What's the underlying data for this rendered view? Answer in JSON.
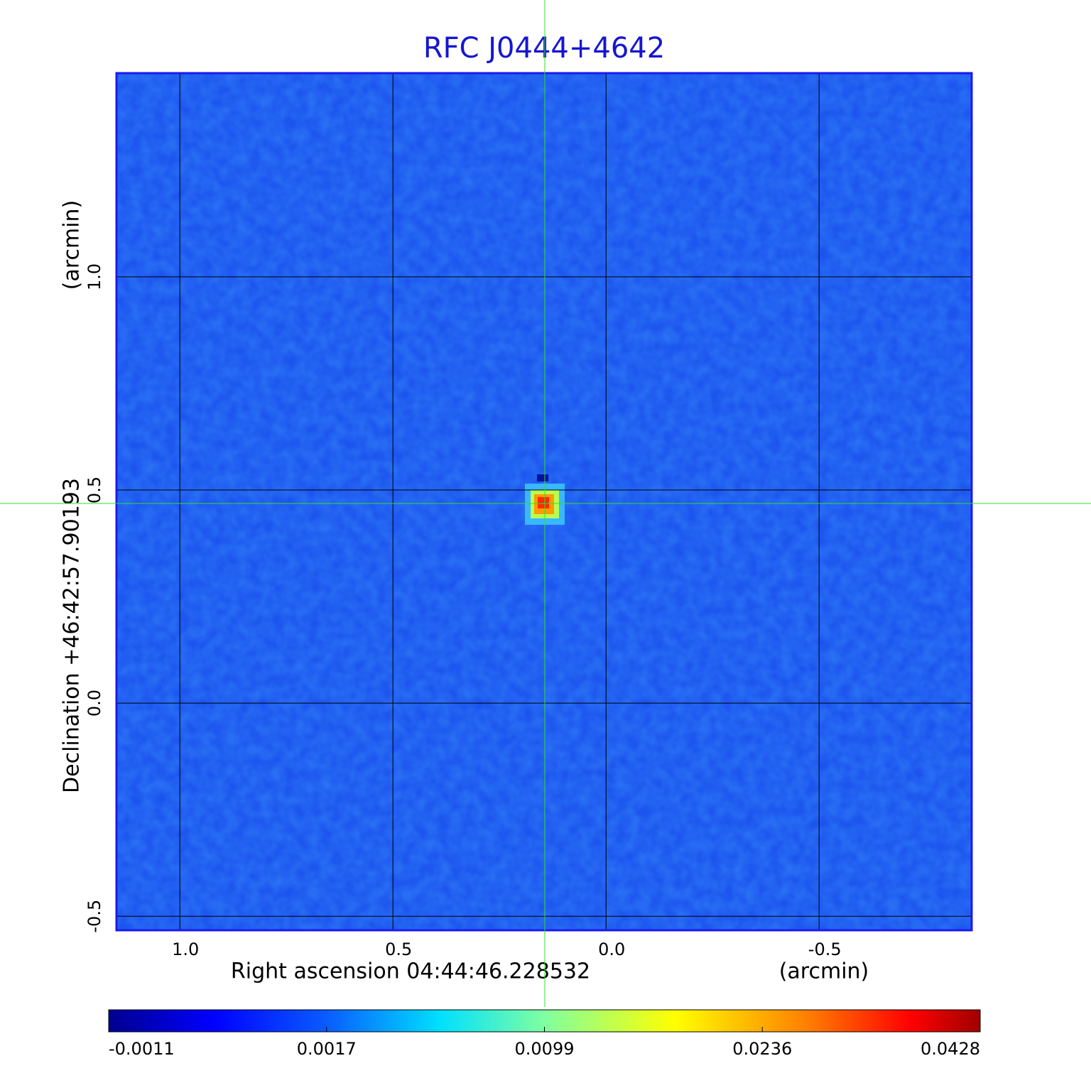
{
  "chart_data": {
    "type": "image",
    "title": "RFC J0444+4642",
    "x_label": "Right ascension  04:44:46.228532",
    "x_unit": "(arcmin)",
    "y_label": "Declination  +46:42:57.90193",
    "y_unit": "(arcmin)",
    "xlim": [
      1.147,
      -0.858
    ],
    "ylim": [
      -0.533,
      1.478
    ],
    "xticks": [
      {
        "value": 1,
        "label": "1.0"
      },
      0.5,
      {
        "value": 0,
        "label": "0.0"
      },
      -0.5
    ],
    "yticks": [
      -0.5,
      {
        "value": 0,
        "label": "0.0"
      },
      0.5,
      {
        "value": 1,
        "label": "1.0"
      }
    ],
    "grid": true,
    "colorbar_ticks": [
      -0.0011,
      0.0017,
      0.0099,
      0.0236,
      0.0428
    ]
  }
}
